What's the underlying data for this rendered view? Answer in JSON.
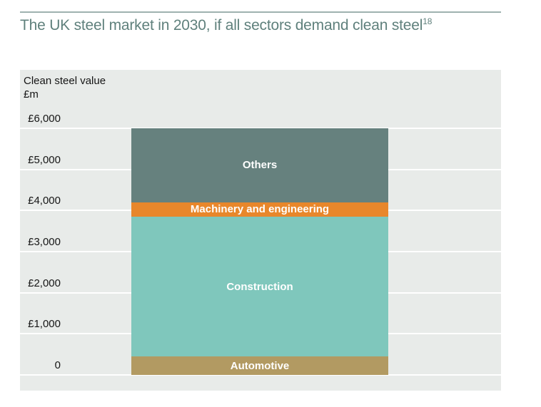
{
  "header": {
    "title": "The UK steel market in 2030, if all sectors demand clean steel",
    "footnote_marker": "18"
  },
  "axis": {
    "title": "Clean steel value\n£m"
  },
  "colors": {
    "title_text": "#5f807c",
    "rule": "#9fb2af",
    "plot_background": "#e8ebe9",
    "gridline": "#ffffff",
    "axis_text": "#161616",
    "segment_label_text": "#ffffff"
  },
  "chart_data": {
    "type": "bar",
    "subtype": "single-stacked-column",
    "title": "The UK steel market in 2030, if all sectors demand clean steel",
    "ylabel": "Clean steel value £m",
    "unit": "£m",
    "ylim": [
      0,
      6000
    ],
    "grid": true,
    "legend": "labels-inside-segments",
    "ticks": [
      {
        "label": "£6,000",
        "value": 6000
      },
      {
        "label": "£5,000",
        "value": 5000
      },
      {
        "label": "£4,000",
        "value": 4000
      },
      {
        "label": "£3,000",
        "value": 3000
      },
      {
        "label": "£2,000",
        "value": 2000
      },
      {
        "label": "£1,000",
        "value": 1000
      },
      {
        "label": "0",
        "value": 0
      }
    ],
    "segments": [
      {
        "name": "Others",
        "value": 1800,
        "color": "#66817e"
      },
      {
        "name": "Machinery and engineering",
        "value": 350,
        "color": "#e8872b"
      },
      {
        "name": "Construction",
        "value": 3400,
        "color": "#7fc7bc"
      },
      {
        "name": "Automotive",
        "value": 450,
        "color": "#b29a62"
      }
    ],
    "total": 6000
  }
}
